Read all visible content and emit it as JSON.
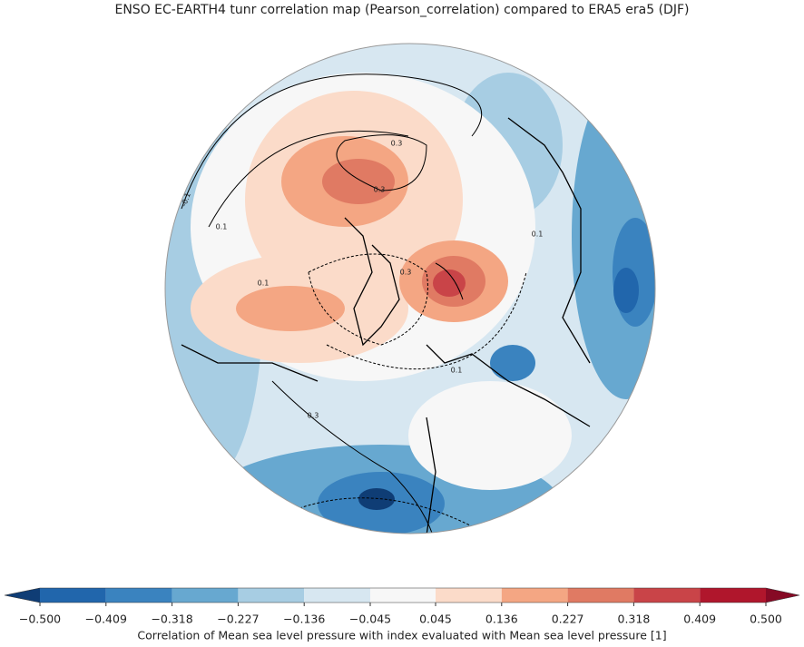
{
  "title": "ENSO EC-EARTH4 tunr correlation map (Pearson_correlation) compared to ERA5 era5 (DJF)",
  "map": {
    "contour_labels": [
      "0.3",
      "0.3",
      "0.1",
      "-0.1",
      "0.1",
      "0.3",
      "0.1",
      "0.3",
      "0.1"
    ]
  },
  "colorbar": {
    "label": "Correlation of Mean sea level pressure with index evaluated with Mean sea level pressure [1]",
    "ticks": [
      {
        "value": -0.5,
        "label": "−0.500"
      },
      {
        "value": -0.409,
        "label": "−0.409"
      },
      {
        "value": -0.318,
        "label": "−0.318"
      },
      {
        "value": -0.227,
        "label": "−0.227"
      },
      {
        "value": -0.136,
        "label": "−0.136"
      },
      {
        "value": -0.045,
        "label": "−0.045"
      },
      {
        "value": 0.045,
        "label": "0.045"
      },
      {
        "value": 0.136,
        "label": "0.136"
      },
      {
        "value": 0.227,
        "label": "0.227"
      },
      {
        "value": 0.318,
        "label": "0.318"
      },
      {
        "value": 0.409,
        "label": "0.409"
      },
      {
        "value": 0.5,
        "label": "0.500"
      }
    ],
    "colors": [
      "#2166ac",
      "#3a83bf",
      "#67a8d0",
      "#a7cde3",
      "#d7e7f1",
      "#f7f7f7",
      "#fbdbc9",
      "#f4a683",
      "#e07a63",
      "#c94448",
      "#b0162c"
    ],
    "extend_colors": [
      "#0f3d75",
      "#860a25"
    ]
  }
}
